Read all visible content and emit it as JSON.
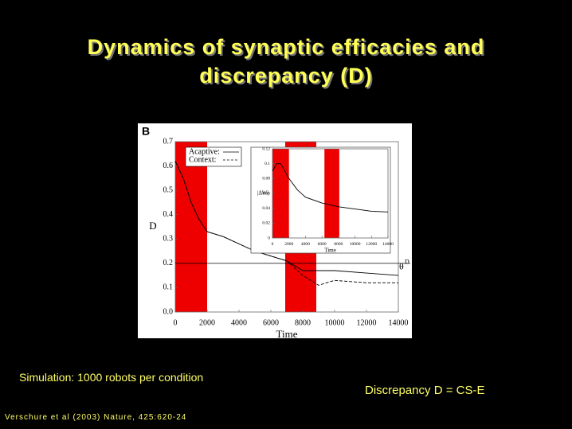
{
  "slide": {
    "title_lines": [
      "Dynamics of synaptic efficacies and",
      "discrepancy (D)"
    ],
    "note": "Simulation: 1000 robots per condition",
    "formula": "Discrepancy D = CS-E",
    "reference": "Verschure et al (2003) Nature, 425:620-24"
  },
  "chart_data": [
    {
      "type": "line",
      "panel_label": "B",
      "x_label": "Time",
      "y_label": "D",
      "xlim": [
        0,
        14000
      ],
      "xticks": [
        0,
        2000,
        4000,
        6000,
        8000,
        10000,
        12000,
        14000
      ],
      "ylim": [
        0,
        0.7
      ],
      "yticks": [
        {
          "value": 0,
          "label": "0.0"
        },
        0.1,
        0.2,
        0.3,
        0.4,
        0.5,
        0.6,
        0.7
      ],
      "bands": [
        [
          0,
          2000
        ],
        [
          6900,
          8850
        ]
      ],
      "band_color": "#ee0000",
      "threshold": {
        "value": 0.2,
        "label": "θ",
        "superscript": "D"
      },
      "legend": "upper left",
      "series": [
        {
          "name": "Acaptive:",
          "color": "#000000",
          "dash": false,
          "x": [
            0,
            500,
            1000,
            1500,
            2000,
            3000,
            4000,
            5000,
            6000,
            7000,
            8000,
            9000,
            10000,
            12000,
            14000
          ],
          "values": [
            0.62,
            0.55,
            0.45,
            0.38,
            0.33,
            0.31,
            0.28,
            0.25,
            0.23,
            0.21,
            0.17,
            0.17,
            0.17,
            0.16,
            0.15
          ]
        },
        {
          "name": "Context:",
          "color": "#000000",
          "dash": true,
          "x": [
            0,
            500,
            1000,
            1500,
            2000,
            3000,
            4000,
            5000,
            6000,
            7000,
            8000,
            9000,
            9500,
            10000,
            12000,
            14000
          ],
          "values": [
            0.62,
            0.55,
            0.45,
            0.38,
            0.33,
            0.31,
            0.28,
            0.25,
            0.23,
            0.21,
            0.15,
            0.11,
            0.12,
            0.13,
            0.12,
            0.12
          ]
        }
      ]
    },
    {
      "type": "line",
      "x_label": "Time",
      "y_label": "|ΔW|",
      "xlim": [
        0,
        14000
      ],
      "xticks": [
        0,
        2000,
        4000,
        6000,
        8000,
        10000,
        12000,
        14000
      ],
      "ylim": [
        0,
        0.12
      ],
      "yticks": [
        0,
        0.02,
        0.04,
        0.06,
        0.08,
        0.1,
        0.12
      ],
      "bands": [
        [
          0,
          2000
        ],
        [
          6300,
          8100
        ]
      ],
      "band_color": "#ee0000",
      "series": [
        {
          "color": "#000000",
          "dash": false,
          "x": [
            0,
            500,
            1000,
            2000,
            3000,
            4000,
            6000,
            8000,
            10000,
            12000,
            14000
          ],
          "values": [
            0.09,
            0.1,
            0.1,
            0.08,
            0.065,
            0.055,
            0.047,
            0.042,
            0.039,
            0.036,
            0.035
          ]
        }
      ]
    }
  ]
}
